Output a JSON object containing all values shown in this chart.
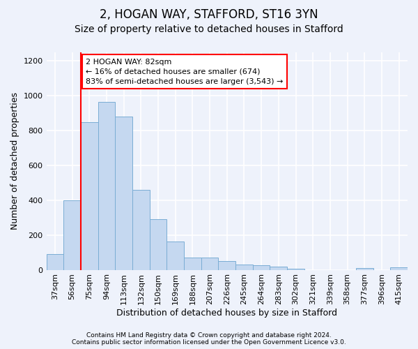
{
  "title1": "2, HOGAN WAY, STAFFORD, ST16 3YN",
  "title2": "Size of property relative to detached houses in Stafford",
  "xlabel": "Distribution of detached houses by size in Stafford",
  "ylabel": "Number of detached properties",
  "categories": [
    "37sqm",
    "56sqm",
    "75sqm",
    "94sqm",
    "113sqm",
    "132sqm",
    "150sqm",
    "169sqm",
    "188sqm",
    "207sqm",
    "226sqm",
    "245sqm",
    "264sqm",
    "283sqm",
    "302sqm",
    "321sqm",
    "339sqm",
    "358sqm",
    "377sqm",
    "396sqm",
    "415sqm"
  ],
  "values": [
    90,
    400,
    850,
    965,
    880,
    460,
    290,
    163,
    70,
    70,
    50,
    30,
    25,
    18,
    5,
    0,
    0,
    0,
    10,
    0,
    15
  ],
  "bar_color": "#c5d8f0",
  "bar_edge_color": "#7aadd4",
  "red_line_index": 2,
  "annotation_text": "2 HOGAN WAY: 82sqm\n← 16% of detached houses are smaller (674)\n83% of semi-detached houses are larger (3,543) →",
  "ylim": [
    0,
    1250
  ],
  "yticks": [
    0,
    200,
    400,
    600,
    800,
    1000,
    1200
  ],
  "footer1": "Contains HM Land Registry data © Crown copyright and database right 2024.",
  "footer2": "Contains public sector information licensed under the Open Government Licence v3.0.",
  "background_color": "#eef2fb",
  "grid_color": "#ffffff",
  "title1_fontsize": 12,
  "title2_fontsize": 10,
  "xlabel_fontsize": 9,
  "ylabel_fontsize": 9,
  "tick_fontsize": 8,
  "annotation_fontsize": 8,
  "footer_fontsize": 6.5
}
